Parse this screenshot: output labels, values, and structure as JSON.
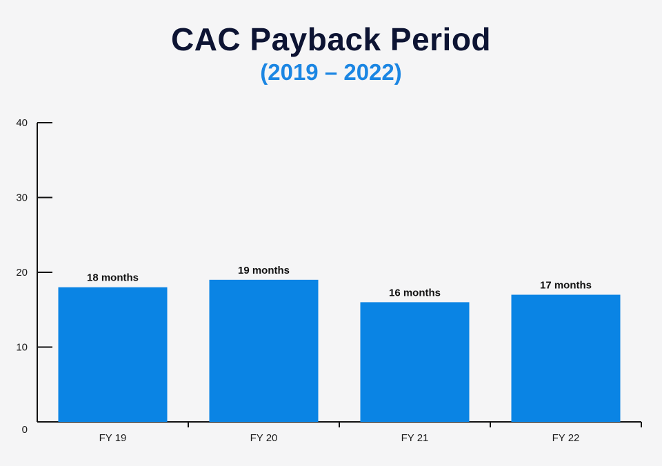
{
  "colors": {
    "background": "#f5f5f6",
    "title": "#0d1433",
    "subtitle": "#1b86e3",
    "bar": "#0a84e4",
    "axis": "#111111"
  },
  "chart_data": {
    "type": "bar",
    "title": "CAC Payback Period",
    "subtitle": "(2019 – 2022)",
    "xlabel": "",
    "ylabel": "",
    "categories": [
      "FY 19",
      "FY 20",
      "FY 21",
      "FY 22"
    ],
    "values": [
      18,
      19,
      16,
      17
    ],
    "data_labels": [
      "18 months",
      "19 months",
      "16 months",
      "17 months"
    ],
    "ylim": [
      0,
      40
    ],
    "yticks": [
      0,
      10,
      20,
      30,
      40
    ],
    "grid": false,
    "legend": "none"
  }
}
